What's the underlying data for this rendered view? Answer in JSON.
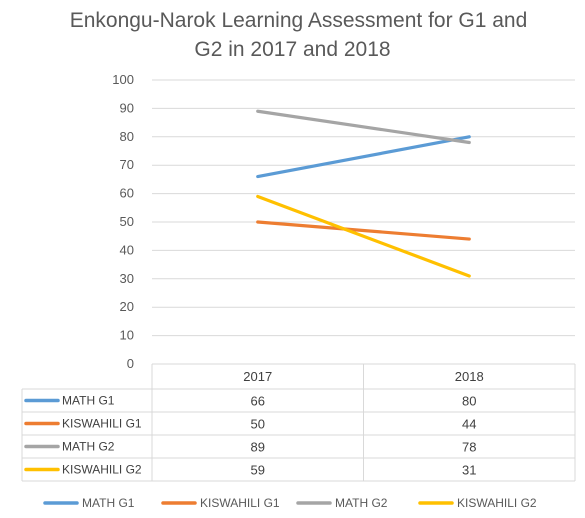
{
  "chart_data": {
    "type": "line",
    "title_line1": "Enkongu-Narok Learning Assessment for G1 and",
    "title_line2": "G2 in 2017 and 2018",
    "categories": [
      "2017",
      "2018"
    ],
    "ylim": [
      0,
      100
    ],
    "yticks": [
      0,
      10,
      20,
      30,
      40,
      50,
      60,
      70,
      80,
      90,
      100
    ],
    "grid": true,
    "legend_position": "bottom",
    "data_table": true,
    "series": [
      {
        "name": "MATH G1",
        "values": [
          66,
          80
        ],
        "color": "#5B9BD5"
      },
      {
        "name": "KISWAHILI G1",
        "values": [
          50,
          44
        ],
        "color": "#ED7D31"
      },
      {
        "name": "MATH G2",
        "values": [
          89,
          78
        ],
        "color": "#A5A5A5"
      },
      {
        "name": "KISWAHILI G2",
        "values": [
          59,
          31
        ],
        "color": "#FFC000"
      }
    ]
  }
}
